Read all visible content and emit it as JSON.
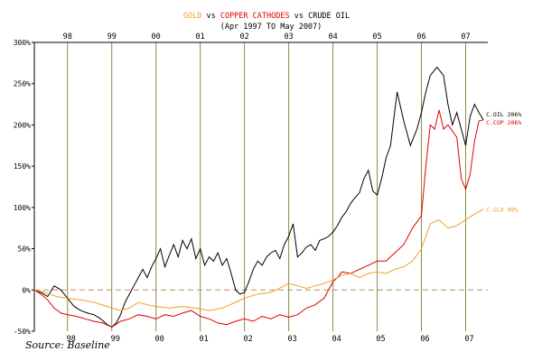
{
  "chart_data": {
    "type": "line",
    "title_parts": [
      {
        "text": "GOLD",
        "color": "#f0a030"
      },
      {
        "text": " vs ",
        "color": "#000000"
      },
      {
        "text": "COPPER CATHODES",
        "color": "#e00000"
      },
      {
        "text": " vs ",
        "color": "#000000"
      },
      {
        "text": "CRUDE OIL",
        "color": "#000000"
      }
    ],
    "subtitle": "(Apr 1997 TO May 2007)",
    "source": "Source: Baseline",
    "x_range": [
      1997.25,
      2007.5
    ],
    "y_range": [
      -50,
      300
    ],
    "y_ticks": [
      {
        "value": 300,
        "label": "300%"
      },
      {
        "value": 250,
        "label": "250%"
      },
      {
        "value": 200,
        "label": "200%"
      },
      {
        "value": 150,
        "label": "150%"
      },
      {
        "value": 100,
        "label": "100%"
      },
      {
        "value": 50,
        "label": "50%"
      },
      {
        "value": 0,
        "label": "0%"
      },
      {
        "value": -50,
        "label": "-50%"
      }
    ],
    "year_ticks": [
      {
        "value": 1998,
        "label": "98"
      },
      {
        "value": 1999,
        "label": "99"
      },
      {
        "value": 2000,
        "label": "00"
      },
      {
        "value": 2001,
        "label": "01"
      },
      {
        "value": 2002,
        "label": "02"
      },
      {
        "value": 2003,
        "label": "03"
      },
      {
        "value": 2004,
        "label": "04"
      },
      {
        "value": 2005,
        "label": "05"
      },
      {
        "value": 2006,
        "label": "06"
      },
      {
        "value": 2007,
        "label": "07"
      }
    ],
    "colors": {
      "grid": "#8a8a4a",
      "zero_line": "#b89060",
      "axis": "#000000"
    },
    "series": [
      {
        "name": "CRUDE OIL",
        "end_label": "C.OIL 206%",
        "color": "#000000",
        "points": [
          [
            1997.25,
            0
          ],
          [
            1997.4,
            -3
          ],
          [
            1997.55,
            -8
          ],
          [
            1997.7,
            5
          ],
          [
            1997.85,
            0
          ],
          [
            1998.0,
            -10
          ],
          [
            1998.15,
            -20
          ],
          [
            1998.3,
            -25
          ],
          [
            1998.45,
            -28
          ],
          [
            1998.6,
            -30
          ],
          [
            1998.75,
            -35
          ],
          [
            1998.9,
            -42
          ],
          [
            1999.0,
            -45
          ],
          [
            1999.1,
            -40
          ],
          [
            1999.2,
            -30
          ],
          [
            1999.3,
            -15
          ],
          [
            1999.4,
            -5
          ],
          [
            1999.5,
            5
          ],
          [
            1999.6,
            15
          ],
          [
            1999.7,
            25
          ],
          [
            1999.8,
            15
          ],
          [
            1999.9,
            28
          ],
          [
            2000.0,
            38
          ],
          [
            2000.1,
            50
          ],
          [
            2000.2,
            28
          ],
          [
            2000.3,
            42
          ],
          [
            2000.4,
            55
          ],
          [
            2000.5,
            40
          ],
          [
            2000.6,
            60
          ],
          [
            2000.7,
            50
          ],
          [
            2000.8,
            62
          ],
          [
            2000.9,
            38
          ],
          [
            2001.0,
            50
          ],
          [
            2001.1,
            30
          ],
          [
            2001.2,
            40
          ],
          [
            2001.3,
            35
          ],
          [
            2001.4,
            45
          ],
          [
            2001.5,
            30
          ],
          [
            2001.6,
            38
          ],
          [
            2001.7,
            20
          ],
          [
            2001.8,
            0
          ],
          [
            2001.9,
            -5
          ],
          [
            2002.0,
            -3
          ],
          [
            2002.1,
            10
          ],
          [
            2002.2,
            25
          ],
          [
            2002.3,
            35
          ],
          [
            2002.4,
            30
          ],
          [
            2002.5,
            40
          ],
          [
            2002.6,
            45
          ],
          [
            2002.7,
            48
          ],
          [
            2002.8,
            38
          ],
          [
            2002.9,
            55
          ],
          [
            2003.0,
            65
          ],
          [
            2003.1,
            80
          ],
          [
            2003.2,
            40
          ],
          [
            2003.3,
            45
          ],
          [
            2003.4,
            52
          ],
          [
            2003.5,
            55
          ],
          [
            2003.6,
            48
          ],
          [
            2003.7,
            60
          ],
          [
            2003.8,
            62
          ],
          [
            2003.9,
            65
          ],
          [
            2004.0,
            70
          ],
          [
            2004.1,
            78
          ],
          [
            2004.2,
            88
          ],
          [
            2004.3,
            95
          ],
          [
            2004.4,
            105
          ],
          [
            2004.5,
            112
          ],
          [
            2004.6,
            118
          ],
          [
            2004.7,
            135
          ],
          [
            2004.8,
            145
          ],
          [
            2004.9,
            120
          ],
          [
            2005.0,
            115
          ],
          [
            2005.1,
            135
          ],
          [
            2005.2,
            160
          ],
          [
            2005.3,
            175
          ],
          [
            2005.45,
            240
          ],
          [
            2005.6,
            205
          ],
          [
            2005.75,
            175
          ],
          [
            2005.9,
            195
          ],
          [
            2006.0,
            215
          ],
          [
            2006.1,
            240
          ],
          [
            2006.2,
            260
          ],
          [
            2006.35,
            270
          ],
          [
            2006.5,
            260
          ],
          [
            2006.6,
            225
          ],
          [
            2006.7,
            200
          ],
          [
            2006.8,
            215
          ],
          [
            2006.9,
            195
          ],
          [
            2007.0,
            175
          ],
          [
            2007.1,
            210
          ],
          [
            2007.2,
            225
          ],
          [
            2007.3,
            215
          ],
          [
            2007.4,
            206
          ]
        ]
      },
      {
        "name": "COPPER CATHODES",
        "end_label": "C.COP 206%",
        "color": "#e00000",
        "points": [
          [
            1997.25,
            0
          ],
          [
            1997.4,
            -5
          ],
          [
            1997.55,
            -12
          ],
          [
            1997.7,
            -22
          ],
          [
            1997.85,
            -28
          ],
          [
            1998.0,
            -30
          ],
          [
            1998.2,
            -32
          ],
          [
            1998.4,
            -35
          ],
          [
            1998.6,
            -38
          ],
          [
            1998.8,
            -40
          ],
          [
            1999.0,
            -45
          ],
          [
            1999.2,
            -38
          ],
          [
            1999.4,
            -35
          ],
          [
            1999.6,
            -30
          ],
          [
            1999.8,
            -32
          ],
          [
            2000.0,
            -35
          ],
          [
            2000.2,
            -30
          ],
          [
            2000.4,
            -32
          ],
          [
            2000.6,
            -28
          ],
          [
            2000.8,
            -25
          ],
          [
            2001.0,
            -32
          ],
          [
            2001.2,
            -35
          ],
          [
            2001.4,
            -40
          ],
          [
            2001.6,
            -42
          ],
          [
            2001.8,
            -38
          ],
          [
            2002.0,
            -35
          ],
          [
            2002.2,
            -38
          ],
          [
            2002.4,
            -32
          ],
          [
            2002.6,
            -35
          ],
          [
            2002.8,
            -30
          ],
          [
            2003.0,
            -33
          ],
          [
            2003.2,
            -30
          ],
          [
            2003.4,
            -22
          ],
          [
            2003.6,
            -18
          ],
          [
            2003.8,
            -10
          ],
          [
            2004.0,
            10
          ],
          [
            2004.1,
            15
          ],
          [
            2004.2,
            22
          ],
          [
            2004.4,
            20
          ],
          [
            2004.6,
            25
          ],
          [
            2004.8,
            30
          ],
          [
            2005.0,
            35
          ],
          [
            2005.2,
            35
          ],
          [
            2005.4,
            45
          ],
          [
            2005.6,
            55
          ],
          [
            2005.8,
            75
          ],
          [
            2006.0,
            90
          ],
          [
            2006.1,
            150
          ],
          [
            2006.2,
            200
          ],
          [
            2006.3,
            195
          ],
          [
            2006.4,
            218
          ],
          [
            2006.5,
            195
          ],
          [
            2006.6,
            200
          ],
          [
            2006.8,
            185
          ],
          [
            2006.9,
            135
          ],
          [
            2007.0,
            122
          ],
          [
            2007.1,
            140
          ],
          [
            2007.2,
            180
          ],
          [
            2007.3,
            205
          ],
          [
            2007.4,
            206
          ]
        ]
      },
      {
        "name": "GOLD",
        "end_label": "C.GLD 98%",
        "color": "#f0a030",
        "points": [
          [
            1997.25,
            0
          ],
          [
            1997.5,
            -3
          ],
          [
            1997.75,
            -8
          ],
          [
            1998.0,
            -10
          ],
          [
            1998.3,
            -12
          ],
          [
            1998.6,
            -15
          ],
          [
            1998.9,
            -20
          ],
          [
            1999.0,
            -22
          ],
          [
            1999.2,
            -25
          ],
          [
            1999.4,
            -22
          ],
          [
            1999.6,
            -15
          ],
          [
            1999.8,
            -18
          ],
          [
            2000.0,
            -20
          ],
          [
            2000.3,
            -22
          ],
          [
            2000.6,
            -20
          ],
          [
            2000.9,
            -22
          ],
          [
            2001.2,
            -25
          ],
          [
            2001.5,
            -22
          ],
          [
            2001.8,
            -15
          ],
          [
            2002.0,
            -10
          ],
          [
            2002.3,
            -5
          ],
          [
            2002.6,
            -3
          ],
          [
            2002.9,
            5
          ],
          [
            2003.0,
            8
          ],
          [
            2003.2,
            5
          ],
          [
            2003.4,
            2
          ],
          [
            2003.6,
            5
          ],
          [
            2003.8,
            8
          ],
          [
            2004.0,
            12
          ],
          [
            2004.2,
            18
          ],
          [
            2004.4,
            20
          ],
          [
            2004.6,
            15
          ],
          [
            2004.8,
            20
          ],
          [
            2005.0,
            22
          ],
          [
            2005.2,
            20
          ],
          [
            2005.4,
            25
          ],
          [
            2005.6,
            28
          ],
          [
            2005.8,
            35
          ],
          [
            2006.0,
            50
          ],
          [
            2006.2,
            80
          ],
          [
            2006.4,
            85
          ],
          [
            2006.6,
            75
          ],
          [
            2006.8,
            78
          ],
          [
            2007.0,
            85
          ],
          [
            2007.2,
            92
          ],
          [
            2007.4,
            98
          ]
        ]
      }
    ]
  }
}
